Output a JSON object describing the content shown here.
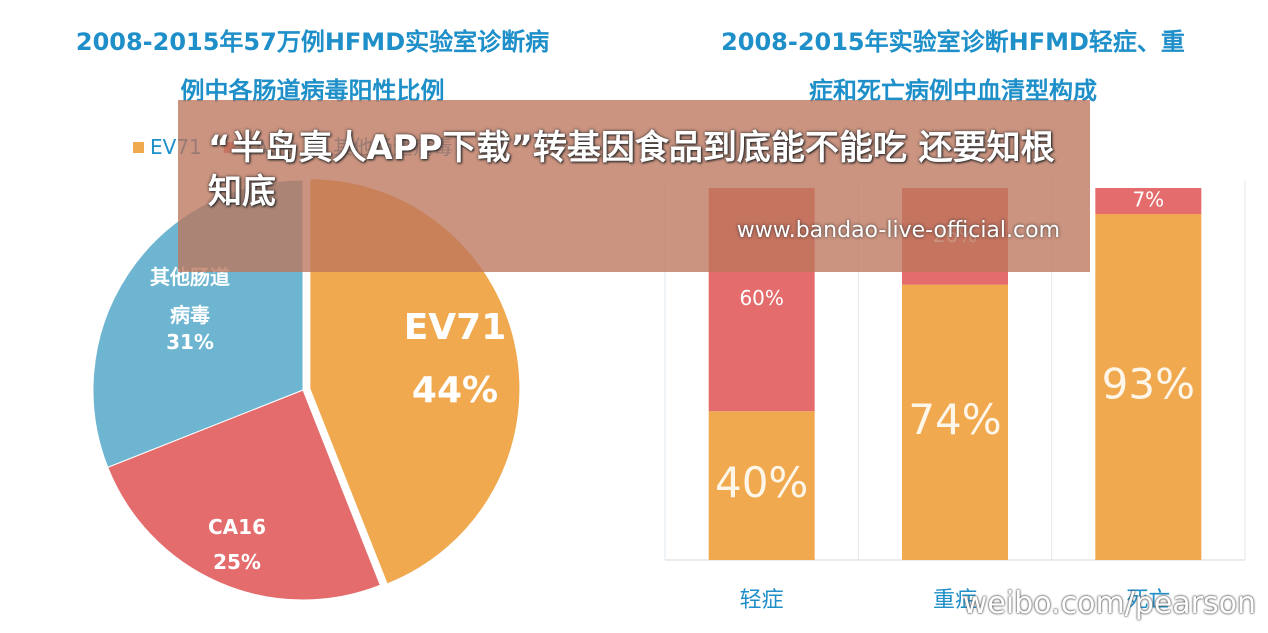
{
  "chart_data": [
    {
      "type": "pie",
      "title": "2008-2015年57万例HFMD实验室诊断病例中各肠道病毒阳性比例",
      "categories": [
        "EV71",
        "CA16",
        "其他肠道病毒"
      ],
      "values": [
        44,
        25,
        31
      ],
      "value_labels": [
        "44%",
        "25%",
        "31%"
      ],
      "colors": [
        "#f0a94e",
        "#e46c6c",
        "#6db5d0"
      ],
      "legend": "top"
    },
    {
      "type": "stacked-bar",
      "title": "2008-2015年实验室诊断HFMD轻症、重症和死亡病例中血清型构成",
      "categories": [
        "轻症",
        "重症",
        "死亡"
      ],
      "series": [
        {
          "color": "#f0a94e",
          "values": [
            40,
            74,
            93
          ],
          "value_labels": [
            "40%",
            "74%",
            "93%"
          ]
        },
        {
          "color": "#e46c6c",
          "values": [
            60,
            26,
            7
          ],
          "value_labels": [
            "60%",
            "26%",
            "7%"
          ]
        }
      ],
      "ylim": [
        0,
        100
      ]
    }
  ],
  "overlay": {
    "headline": "“半岛真人APP下载”转基因食品到底能不能吃 还要知根知底",
    "url": "www.bandao-live-official.com"
  },
  "watermark": "weibo.com/pearson"
}
